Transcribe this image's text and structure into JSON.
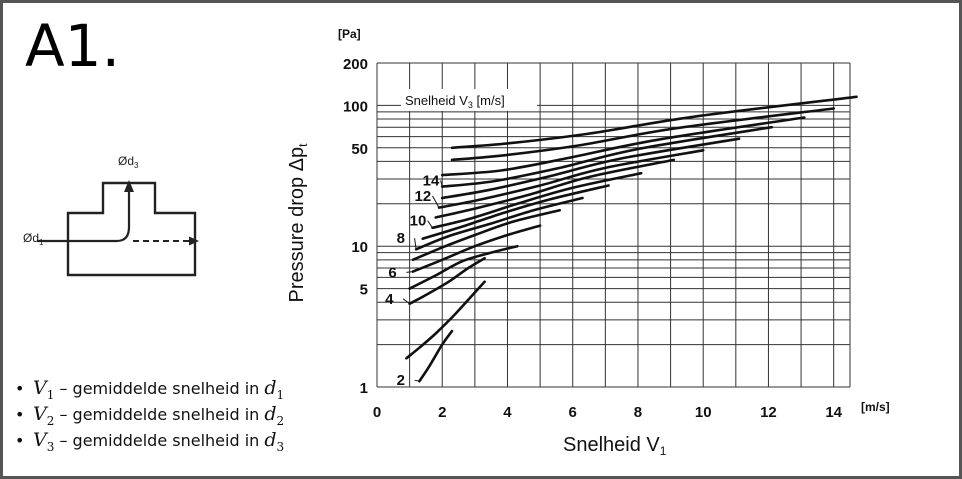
{
  "figure_label": "A1.",
  "diagram": {
    "label_d3": "Ød",
    "label_d3_sub": "3",
    "label_d1": "Ød",
    "label_d1_sub": "1"
  },
  "bullets": [
    {
      "symbol": "V",
      "sub": "1",
      "text": " – gemiddelde snelheid in ",
      "d": "d",
      "dsub": "1"
    },
    {
      "symbol": "V",
      "sub": "2",
      "text": " – gemiddelde snelheid in ",
      "d": "d",
      "dsub": "2"
    },
    {
      "symbol": "V",
      "sub": "3",
      "text": " – gemiddelde snelheid in ",
      "d": "d",
      "dsub": "3"
    }
  ],
  "chart_data": {
    "type": "line",
    "title": "",
    "xlabel": "Snelheid V",
    "xlabel_sub": "1",
    "x_unit": "[m/s]",
    "ylabel": "Pressure drop Δp",
    "ylabel_sub": "t",
    "y_unit": "[Pa]",
    "legend_title": "Snelheid V",
    "legend_title_sub": "3",
    "legend_title_unit": "[m/s]",
    "xlim": [
      0,
      14.5
    ],
    "ylim": [
      1,
      200
    ],
    "y_scale": "log",
    "x_ticks": [
      0,
      2,
      4,
      6,
      8,
      10,
      12,
      14
    ],
    "y_ticks": [
      1,
      5,
      10,
      50,
      100,
      200
    ],
    "grid": true,
    "series": [
      {
        "name": "2",
        "label_at": [
          0.6,
          1.03
        ],
        "x": [
          1.3,
          1.6,
          2.0,
          2.3
        ],
        "y": [
          1.1,
          1.4,
          2.0,
          2.5
        ]
      },
      {
        "name": "",
        "x": [
          0.9,
          1.3,
          1.8,
          2.4,
          3.3
        ],
        "y": [
          1.6,
          1.9,
          2.4,
          3.3,
          5.6
        ]
      },
      {
        "name": "4",
        "label_at": [
          0.25,
          3.9
        ],
        "x": [
          1.0,
          1.5,
          2.2,
          2.8,
          3.3
        ],
        "y": [
          3.9,
          4.5,
          5.6,
          7.0,
          8.2
        ]
      },
      {
        "name": "",
        "x": [
          1.0,
          1.8,
          2.6,
          3.5,
          4.3
        ],
        "y": [
          5.0,
          6.2,
          7.8,
          9.0,
          10.0
        ]
      },
      {
        "name": "6",
        "label_at": [
          0.35,
          6.0
        ],
        "x": [
          1.1,
          2.0,
          3.0,
          4.0,
          5.0
        ],
        "y": [
          6.6,
          8.0,
          10.0,
          12.0,
          14.0
        ]
      },
      {
        "name": "",
        "x": [
          1.1,
          2.0,
          3.0,
          4.2,
          5.6
        ],
        "y": [
          8.0,
          9.8,
          12.0,
          15.0,
          18.0
        ]
      },
      {
        "name": "8",
        "label_at": [
          0.6,
          10.5
        ],
        "x": [
          1.2,
          2.2,
          3.5,
          4.8,
          6.3
        ],
        "y": [
          9.5,
          11.8,
          14.5,
          18.0,
          22.0
        ]
      },
      {
        "name": "",
        "x": [
          1.4,
          2.5,
          3.8,
          5.3,
          7.1
        ],
        "y": [
          11.3,
          13.5,
          17.0,
          21.5,
          27.0
        ]
      },
      {
        "name": "10",
        "label_at": [
          1.0,
          14.0
        ],
        "x": [
          1.7,
          2.9,
          4.3,
          6.0,
          8.1
        ],
        "y": [
          13.5,
          15.8,
          20.0,
          26.0,
          33.0
        ]
      },
      {
        "name": "",
        "x": [
          1.8,
          3.0,
          4.6,
          6.5,
          9.1
        ],
        "y": [
          16.0,
          18.5,
          23.0,
          31.0,
          41.0
        ]
      },
      {
        "name": "12",
        "label_at": [
          1.15,
          21.0
        ],
        "x": [
          1.9,
          3.2,
          5.0,
          7.0,
          10.0
        ],
        "y": [
          18.8,
          21.5,
          27.0,
          36.0,
          48.0
        ]
      },
      {
        "name": "",
        "x": [
          2.0,
          3.4,
          5.2,
          7.5,
          11.1
        ],
        "y": [
          22.0,
          25.0,
          31.0,
          42.0,
          58.0
        ]
      },
      {
        "name": "14",
        "label_at": [
          1.4,
          27.0
        ],
        "x": [
          2.0,
          3.6,
          5.6,
          8.0,
          12.1
        ],
        "y": [
          26.5,
          29.0,
          36.0,
          49.0,
          70.0
        ]
      },
      {
        "name": "",
        "x": [
          2.0,
          3.8,
          5.8,
          8.6,
          13.1
        ],
        "y": [
          32.0,
          34.5,
          42.0,
          57.0,
          82.0
        ]
      },
      {
        "name": "",
        "x": [
          2.3,
          4.0,
          6.2,
          9.2,
          14.0
        ],
        "y": [
          41.0,
          44.5,
          52.0,
          69.0,
          95.0
        ]
      },
      {
        "name": "",
        "x": [
          2.3,
          4.1,
          6.5,
          9.7,
          14.7
        ],
        "y": [
          50.0,
          54.0,
          63.0,
          83.0,
          115.0
        ]
      }
    ]
  }
}
